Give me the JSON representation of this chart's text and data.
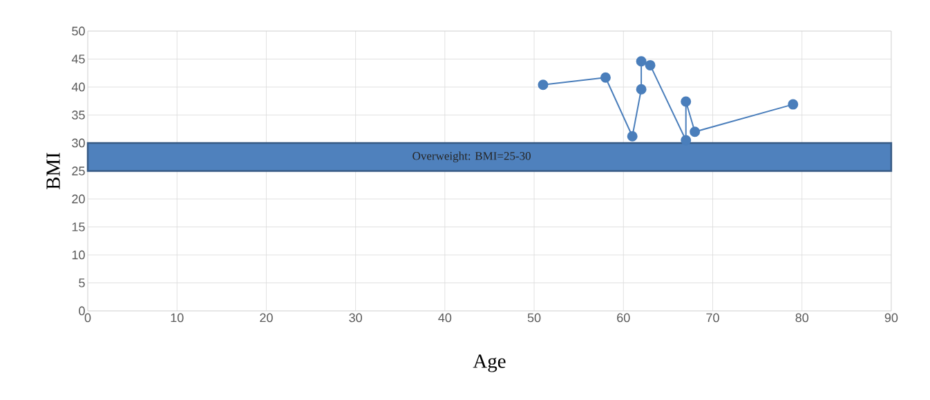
{
  "chart_data": {
    "type": "line",
    "xlabel": "Age",
    "ylabel": "BMI",
    "x": [
      51,
      58,
      61,
      62,
      62,
      63,
      67,
      67,
      68,
      79
    ],
    "series": [
      {
        "color": "#4a7ebb",
        "values": [
          40.4,
          41.7,
          31.2,
          39.6,
          44.6,
          43.9,
          30.5,
          37.4,
          32.0,
          36.9
        ]
      }
    ],
    "xlim": [
      0,
      90
    ],
    "xticks": [
      0,
      10,
      20,
      30,
      40,
      50,
      60,
      70,
      80,
      90
    ],
    "ylim": [
      0,
      50
    ],
    "yticks": [
      0,
      5,
      10,
      15,
      20,
      25,
      30,
      35,
      40,
      45,
      50
    ],
    "bands": [
      {
        "axis": "y",
        "from": 25,
        "to": 30,
        "label": "Overweight: BMI=25-30",
        "color": "#4f81bd"
      }
    ],
    "grid": true,
    "marker": "circle",
    "line_style": "solid"
  }
}
